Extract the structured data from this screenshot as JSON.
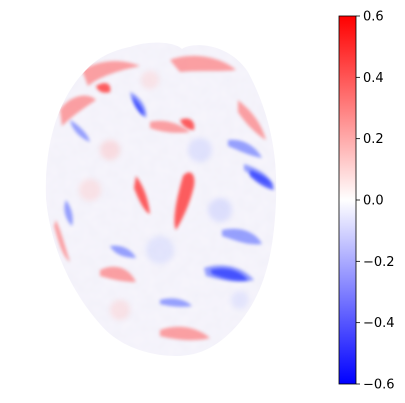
{
  "figure": {
    "kind": "diverging-map-brain-slice",
    "colormap": "bwr",
    "colors": {
      "negative": "#0000ff",
      "zero": "#ffffff",
      "positive": "#ff0000",
      "tick": "#000000"
    }
  },
  "colorbar": {
    "range": [
      -0.6,
      0.6
    ],
    "ticks": [
      {
        "value": 0.6,
        "label": "0.6"
      },
      {
        "value": 0.4,
        "label": "0.4"
      },
      {
        "value": 0.2,
        "label": "0.2"
      },
      {
        "value": 0.0,
        "label": "0.0"
      },
      {
        "value": -0.2,
        "label": "−0.2"
      },
      {
        "value": -0.4,
        "label": "−0.4"
      },
      {
        "value": -0.6,
        "label": "−0.6"
      }
    ]
  }
}
